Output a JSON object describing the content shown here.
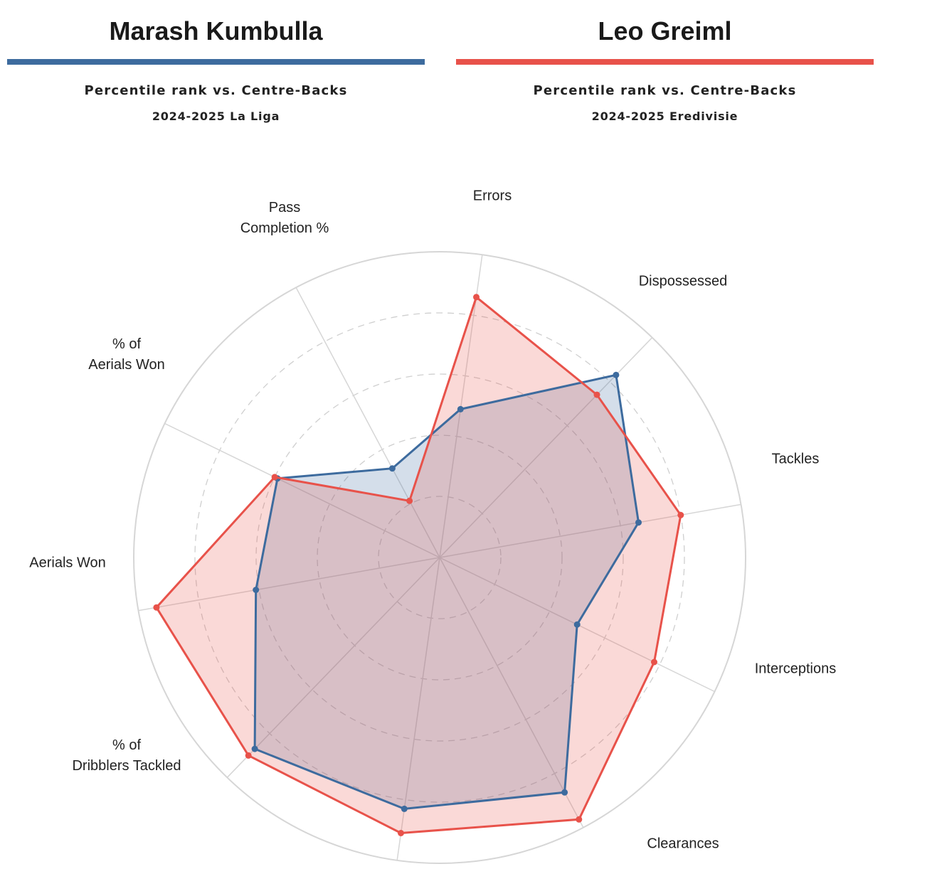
{
  "players": [
    {
      "name": "Marash Kumbulla",
      "subtitle": "Percentile rank vs. Centre-Backs",
      "season": "2024-2025 La Liga",
      "color": "#3d6b9e"
    },
    {
      "name": "Leo Greiml",
      "subtitle": "Percentile rank vs. Centre-Backs",
      "season": "2024-2025 Eredivisie",
      "color": "#e8524a"
    }
  ],
  "chart_data": {
    "type": "radar",
    "title": "",
    "range": [
      0,
      100
    ],
    "rings": [
      20,
      40,
      60,
      80
    ],
    "outer_ring": 100,
    "grid": true,
    "categories": [
      "Errors",
      "Dispossessed",
      "Tackles",
      "Interceptions",
      "Clearances",
      "",
      "% of Dribblers Tackled",
      "Aerials Won",
      "% of Aerials Won",
      "Pass Completion %"
    ],
    "series": [
      {
        "name": "Marash Kumbulla",
        "color": "#3d6b9e",
        "fill": "rgba(61,107,158,0.22)",
        "values": [
          49,
          83,
          66,
          50,
          87,
          83,
          87,
          61,
          59,
          33
        ]
      },
      {
        "name": "Leo Greiml",
        "color": "#e8524a",
        "fill": "rgba(232,82,74,0.22)",
        "values": [
          86,
          74,
          80,
          78,
          97,
          91,
          90,
          94,
          60,
          21
        ]
      }
    ]
  }
}
